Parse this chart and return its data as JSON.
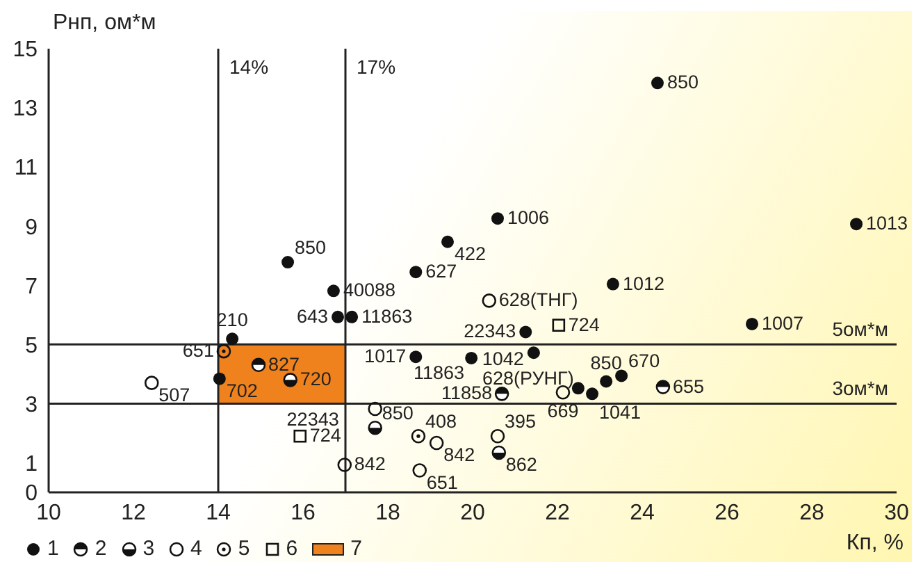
{
  "chart_data": {
    "type": "scatter",
    "xlabel": "Кп, %",
    "ylabel": "Рнп, ом*м",
    "xlim": [
      10,
      30
    ],
    "xticks": [
      10,
      12,
      14,
      16,
      18,
      20,
      22,
      24,
      26,
      28,
      30
    ],
    "ylim": [
      0,
      15
    ],
    "yticks": [
      0,
      1,
      3,
      5,
      7,
      9,
      11,
      13,
      15
    ],
    "legend": "bottom left",
    "series": [
      {
        "name": "1",
        "color": "#111111",
        "marker": "circle",
        "x": [
          24.36,
          20.59,
          29.05,
          19.41,
          15.64,
          18.66,
          16.72,
          16.82,
          17.15,
          14.33,
          14.03,
          18.66,
          19.97,
          21.25,
          21.44,
          23.31,
          26.59,
          22.49,
          22.82,
          23.15,
          23.51
        ],
        "values": [
          13.84,
          9.26,
          9.07,
          8.47,
          7.78,
          7.45,
          6.81,
          5.93,
          5.93,
          5.19,
          3.84,
          4.58,
          4.54,
          5.42,
          4.72,
          7.04,
          5.69,
          3.52,
          3.33,
          3.75,
          3.94
        ]
      },
      {
        "name": "2",
        "color": "#111111",
        "marker": "circle",
        "x": [
          14.95,
          20.69,
          24.49
        ],
        "values": [
          4.31,
          3.33,
          3.56
        ]
      },
      {
        "name": "3",
        "color": "#111111",
        "marker": "circle",
        "x": [
          15.7,
          17.7,
          20.62
        ],
        "values": [
          3.8,
          2.18,
          1.34
        ]
      },
      {
        "name": "4",
        "color": "#111111",
        "marker": "circle",
        "x": [
          12.43,
          17.7,
          16.98,
          19.15,
          18.75,
          20.59,
          20.39,
          22.13
        ],
        "values": [
          3.7,
          2.82,
          0.93,
          1.67,
          0.74,
          1.9,
          6.48,
          3.38
        ]
      },
      {
        "name": "5",
        "color": "#111111",
        "marker": "circle",
        "x": [
          14.13,
          18.72
        ],
        "values": [
          4.77,
          1.9
        ]
      },
      {
        "name": "6",
        "color": "#111111",
        "marker": "square",
        "x": [
          15.93,
          22.03
        ],
        "values": [
          1.9,
          5.65
        ]
      }
    ],
    "ref_lines": [
      {
        "axis": "x",
        "value": 14,
        "label": "14%",
        "color": "#222222"
      },
      {
        "axis": "x",
        "value": 17,
        "label": "17%",
        "color": "#222222"
      },
      {
        "axis": "y",
        "value": 5,
        "label": "5ом*м",
        "color": "#222222"
      },
      {
        "axis": "y",
        "value": 3,
        "label": "3ом*м",
        "color": "#222222"
      }
    ],
    "bands": [
      {
        "axis": "x",
        "from": 14,
        "to": 17,
        "label": "7",
        "color": "#f0821e"
      }
    ],
    "annotations": [
      {
        "text": "850",
        "x": 24.36,
        "y": 13.84
      },
      {
        "text": "1006",
        "x": 20.59,
        "y": 9.26
      },
      {
        "text": "1013",
        "x": 29.05,
        "y": 9.07
      },
      {
        "text": "422",
        "x": 19.41,
        "y": 8.47
      },
      {
        "text": "850",
        "x": 15.64,
        "y": 7.78
      },
      {
        "text": "627",
        "x": 18.66,
        "y": 7.45
      },
      {
        "text": "40088",
        "x": 16.72,
        "y": 6.81
      },
      {
        "text": "643",
        "x": 16.82,
        "y": 5.93
      },
      {
        "text": "11863",
        "x": 17.15,
        "y": 5.93
      },
      {
        "text": "210",
        "x": 14.33,
        "y": 5.19
      },
      {
        "text": "702",
        "x": 14.03,
        "y": 3.84
      },
      {
        "text": "1017",
        "x": 18.66,
        "y": 4.58
      },
      {
        "text": "11863",
        "x": 19.97,
        "y": 4.54
      },
      {
        "text": "22343",
        "x": 21.25,
        "y": 5.42
      },
      {
        "text": "1042",
        "x": 21.44,
        "y": 4.72
      },
      {
        "text": "1012",
        "x": 23.31,
        "y": 7.04
      },
      {
        "text": "1007",
        "x": 26.59,
        "y": 5.69
      },
      {
        "text": "1041",
        "x": 22.82,
        "y": 3.33
      },
      {
        "text": "850",
        "x": 23.15,
        "y": 3.75
      },
      {
        "text": "670",
        "x": 23.51,
        "y": 3.94
      },
      {
        "text": "827",
        "x": 14.95,
        "y": 4.31
      },
      {
        "text": "11858",
        "x": 20.69,
        "y": 3.33
      },
      {
        "text": "655",
        "x": 24.49,
        "y": 3.56
      },
      {
        "text": "720",
        "x": 15.7,
        "y": 3.8
      },
      {
        "text": "850",
        "x": 17.7,
        "y": 2.18
      },
      {
        "text": "862",
        "x": 20.62,
        "y": 1.34
      },
      {
        "text": "507",
        "x": 12.43,
        "y": 3.7
      },
      {
        "text": "22343",
        "x": 17.7,
        "y": 2.82
      },
      {
        "text": "842",
        "x": 16.98,
        "y": 0.93
      },
      {
        "text": "842",
        "x": 19.15,
        "y": 1.67
      },
      {
        "text": "651",
        "x": 18.75,
        "y": 0.74
      },
      {
        "text": "395",
        "x": 20.59,
        "y": 1.9
      },
      {
        "text": "628(ТНГ)",
        "x": 20.39,
        "y": 6.48
      },
      {
        "text": "669",
        "x": 22.13,
        "y": 3.38
      },
      {
        "text": "651",
        "x": 14.13,
        "y": 4.77
      },
      {
        "text": "408",
        "x": 18.72,
        "y": 1.9
      },
      {
        "text": "724",
        "x": 15.93,
        "y": 1.9
      },
      {
        "text": "724",
        "x": 22.03,
        "y": 5.65
      },
      {
        "text": "628(РУНГ)",
        "x": 21.44,
        "y": 4.72
      }
    ]
  }
}
